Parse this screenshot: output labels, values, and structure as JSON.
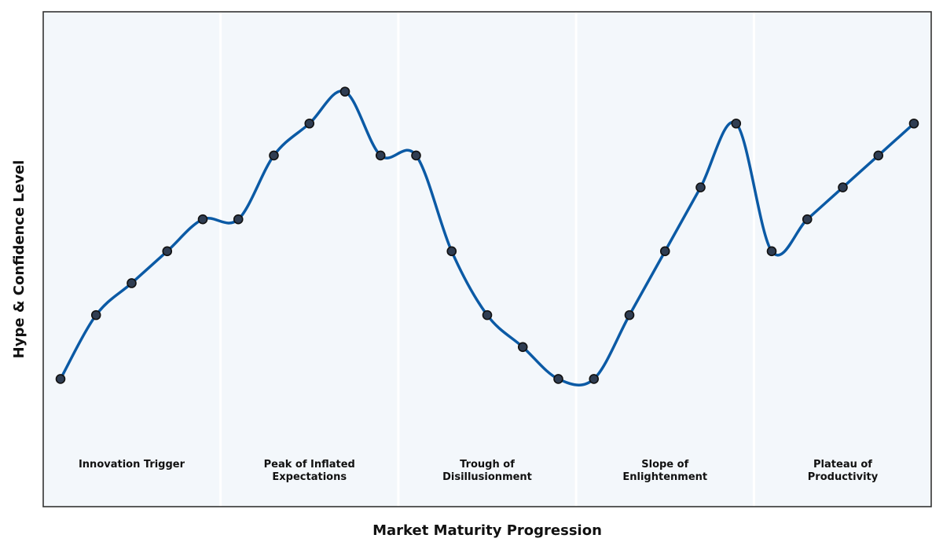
{
  "chart_data": {
    "type": "line",
    "title": "",
    "xlabel": "Market Maturity Progression",
    "ylabel": "Hype & Confidence Level",
    "grid": false,
    "smooth": true,
    "colors": {
      "line": "#0b5aa5",
      "marker_fill": "#2f3d52",
      "marker_edge": "#111111",
      "plot_background": "#f3f7fb",
      "phase_divider": "#ffffff",
      "frame": "#333333"
    },
    "phases": [
      {
        "name": "innovation-trigger",
        "lines": [
          "Innovation Trigger"
        ]
      },
      {
        "name": "peak-of-inflated-expectations",
        "lines": [
          "Peak of Inflated",
          "Expectations"
        ]
      },
      {
        "name": "trough-of-disillusionment",
        "lines": [
          "Trough of",
          "Disillusionment"
        ]
      },
      {
        "name": "slope-of-enlightenment",
        "lines": [
          "Slope of",
          "Enlightenment"
        ]
      },
      {
        "name": "plateau-of-productivity",
        "lines": [
          "Plateau of",
          "Productivity"
        ]
      }
    ],
    "x": [
      1,
      2,
      3,
      4,
      5,
      6,
      7,
      8,
      9,
      10,
      11,
      12,
      13,
      14,
      15,
      16,
      17,
      18,
      19,
      20,
      21,
      22,
      23,
      24,
      25
    ],
    "ylim": [
      -2,
      13.5
    ],
    "series": [
      {
        "values": [
          2,
          4,
          5,
          6,
          7,
          7,
          9,
          10,
          11,
          9,
          9,
          6,
          4,
          3,
          2,
          2,
          4,
          6,
          8,
          10,
          6,
          7,
          8,
          9,
          10
        ]
      }
    ]
  }
}
